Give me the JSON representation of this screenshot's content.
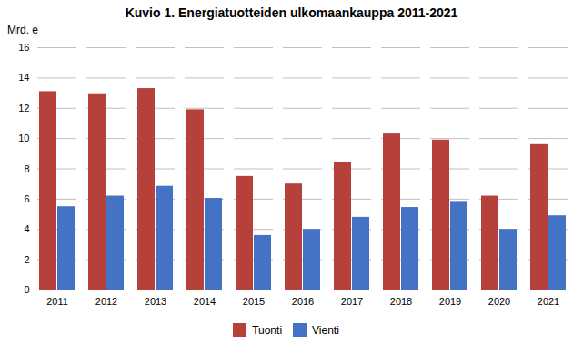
{
  "chart_data": {
    "type": "bar",
    "title": "Kuvio 1. Energiatuotteiden ulkomaankauppa 2011-2021",
    "ylabel": "Mrd. e",
    "categories": [
      "2011",
      "2012",
      "2013",
      "2014",
      "2015",
      "2016",
      "2017",
      "2018",
      "2019",
      "2020",
      "2021"
    ],
    "series": [
      {
        "name": "Tuonti",
        "color": "#B5413A",
        "values": [
          13.1,
          12.9,
          13.3,
          11.9,
          7.5,
          7.0,
          8.4,
          10.3,
          9.9,
          6.2,
          9.6
        ]
      },
      {
        "name": "Vienti",
        "color": "#4472C4",
        "values": [
          5.5,
          6.2,
          6.85,
          6.05,
          3.6,
          4.0,
          4.8,
          5.45,
          5.85,
          4.0,
          4.9
        ]
      }
    ],
    "ylim": [
      0,
      16
    ],
    "yticks": [
      0,
      2,
      4,
      6,
      8,
      10,
      12,
      14,
      16
    ],
    "grid": true,
    "legend": "bottom"
  }
}
